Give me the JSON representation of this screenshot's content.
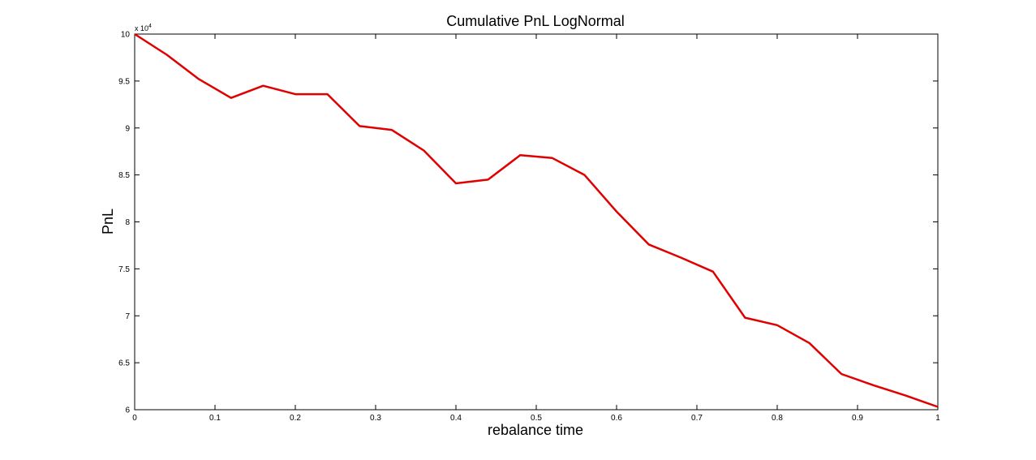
{
  "chart_data": {
    "type": "line",
    "title": "Cumulative PnL LogNormal",
    "xlabel": "rebalance time",
    "ylabel": "PnL",
    "multiplier_text": "x 10",
    "multiplier_exponent": "4",
    "xlim": [
      0,
      1
    ],
    "ylim": [
      6,
      10
    ],
    "x_ticks": [
      "0",
      "0.1",
      "0.2",
      "0.3",
      "0.4",
      "0.5",
      "0.6",
      "0.7",
      "0.8",
      "0.9",
      "1"
    ],
    "y_ticks": [
      "6",
      "6.5",
      "7",
      "7.5",
      "8",
      "8.5",
      "9",
      "9.5",
      "10"
    ],
    "grid": false,
    "line_color": "#e00000",
    "series": [
      {
        "x": [
          0,
          0.04,
          0.08,
          0.12,
          0.16,
          0.2,
          0.24,
          0.28,
          0.32,
          0.36,
          0.4,
          0.44,
          0.48,
          0.52,
          0.56,
          0.6,
          0.64,
          0.68,
          0.72,
          0.76,
          0.8,
          0.84,
          0.88,
          0.92,
          0.96,
          1.0
        ],
        "values": [
          10.0,
          9.78,
          9.52,
          9.32,
          9.45,
          9.36,
          9.36,
          9.02,
          8.98,
          8.76,
          8.41,
          8.45,
          8.71,
          8.68,
          8.5,
          8.11,
          7.76,
          7.62,
          7.47,
          6.98,
          6.9,
          6.71,
          6.38,
          6.26,
          6.15,
          6.03
        ]
      }
    ]
  }
}
